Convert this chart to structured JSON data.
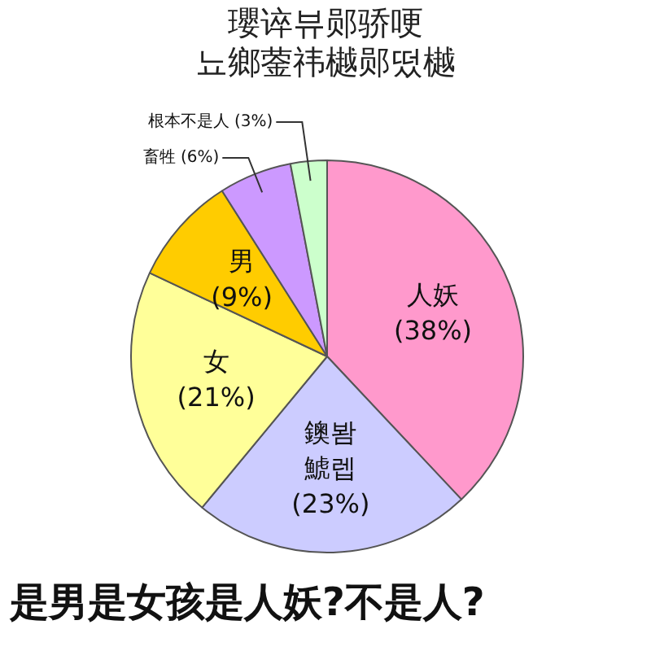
{
  "chart_data": {
    "type": "pie",
    "title": "瓔谇뷰郧骄哽\n뇨鄉蓥祎樾郧떴樾",
    "categories": [
      "人妖",
      "鐭봠\n鯱렙",
      "女",
      "男",
      "畜牲",
      "根本不是人"
    ],
    "values": [
      38,
      23,
      21,
      9,
      6,
      3
    ],
    "value_labels": [
      "(38%)",
      "(23%)",
      "(21%)",
      "(9%)",
      "(6%)",
      "(3%)"
    ],
    "colors": [
      "#ff99cc",
      "#ccccff",
      "#ffff99",
      "#ffcc00",
      "#cc99ff",
      "#ccffcc"
    ],
    "annotations": [
      "是男是女孩是人妖?不是人?"
    ],
    "legend": false
  }
}
